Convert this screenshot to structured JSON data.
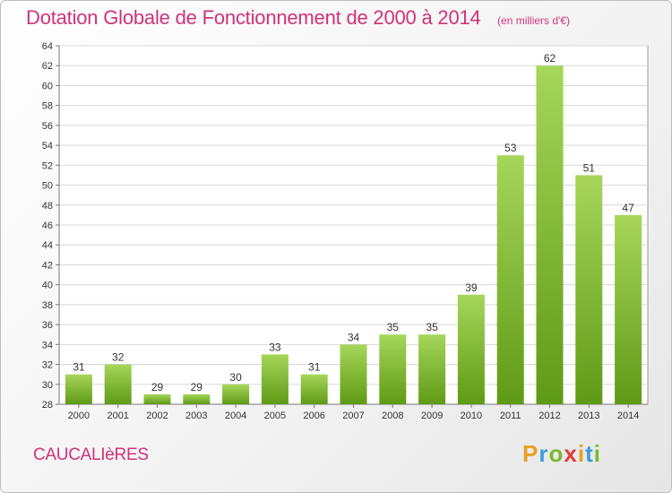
{
  "title": "Dotation Globale de Fonctionnement de 2000 à 2014",
  "subtitle": "(en milliers d'€)",
  "commune": "CAUCALIèRES",
  "logo": {
    "letters": [
      "P",
      "r",
      "o",
      "x",
      "i",
      "t",
      "i"
    ],
    "colors": [
      "#e8a020",
      "#3a9bd9",
      "#7ab832",
      "#e23a3a",
      "#e8a020",
      "#3a9bd9",
      "#7ab832"
    ]
  },
  "colors": {
    "bar_top": "#a6d65a",
    "bar_bottom": "#5f9a16",
    "text": "#d0327a"
  },
  "chart_data": {
    "type": "bar",
    "categories": [
      "2000",
      "2001",
      "2002",
      "2003",
      "2004",
      "2005",
      "2006",
      "2007",
      "2008",
      "2009",
      "2010",
      "2011",
      "2012",
      "2013",
      "2014"
    ],
    "values": [
      31,
      32,
      29,
      29,
      30,
      33,
      31,
      34,
      35,
      35,
      39,
      53,
      62,
      51,
      47
    ],
    "ylim": [
      28,
      64
    ],
    "yticks": [
      28,
      30,
      32,
      34,
      36,
      38,
      40,
      42,
      44,
      46,
      48,
      50,
      52,
      54,
      56,
      58,
      60,
      62,
      64
    ],
    "grid": true,
    "data_labels": true
  }
}
